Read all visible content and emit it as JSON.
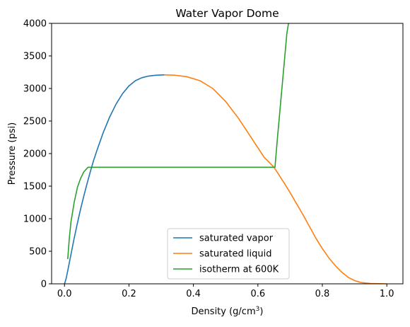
{
  "chart_data": {
    "type": "line",
    "title": "Water Vapor Dome",
    "xlabel": "Density (g/cm",
    "xlabel_superscript": "3",
    "xlabel_suffix": ")",
    "ylabel": "Pressure (psi)",
    "xlim": [
      -0.04,
      1.05
    ],
    "ylim": [
      0,
      4000
    ],
    "xticks": [
      0.0,
      0.2,
      0.4,
      0.6,
      0.8,
      1.0
    ],
    "xtick_labels": [
      "0.0",
      "0.2",
      "0.4",
      "0.6",
      "0.8",
      "1.0"
    ],
    "yticks": [
      0,
      500,
      1000,
      1500,
      2000,
      2500,
      3000,
      3500,
      4000
    ],
    "ytick_labels": [
      "0",
      "500",
      "1000",
      "1500",
      "2000",
      "2500",
      "3000",
      "3500",
      "4000"
    ],
    "grid": false,
    "legend_position": "lower-center",
    "series": [
      {
        "name": "saturated vapor",
        "color": "#1f77b4",
        "points": [
          [
            0.0,
            0
          ],
          [
            0.005,
            80
          ],
          [
            0.01,
            200
          ],
          [
            0.02,
            450
          ],
          [
            0.03,
            700
          ],
          [
            0.04,
            930
          ],
          [
            0.05,
            1150
          ],
          [
            0.06,
            1350
          ],
          [
            0.07,
            1540
          ],
          [
            0.08,
            1720
          ],
          [
            0.09,
            1890
          ],
          [
            0.1,
            2040
          ],
          [
            0.12,
            2320
          ],
          [
            0.14,
            2560
          ],
          [
            0.16,
            2760
          ],
          [
            0.18,
            2920
          ],
          [
            0.2,
            3040
          ],
          [
            0.22,
            3120
          ],
          [
            0.24,
            3165
          ],
          [
            0.26,
            3190
          ],
          [
            0.28,
            3202
          ],
          [
            0.3,
            3207
          ],
          [
            0.31,
            3208
          ]
        ]
      },
      {
        "name": "saturated liquid",
        "color": "#ff7f0e",
        "points": [
          [
            0.31,
            3208
          ],
          [
            0.34,
            3205
          ],
          [
            0.38,
            3180
          ],
          [
            0.42,
            3120
          ],
          [
            0.46,
            3000
          ],
          [
            0.5,
            2800
          ],
          [
            0.54,
            2540
          ],
          [
            0.58,
            2240
          ],
          [
            0.62,
            1940
          ],
          [
            0.65,
            1790
          ],
          [
            0.68,
            1560
          ],
          [
            0.7,
            1400
          ],
          [
            0.72,
            1230
          ],
          [
            0.74,
            1060
          ],
          [
            0.76,
            880
          ],
          [
            0.78,
            700
          ],
          [
            0.8,
            540
          ],
          [
            0.82,
            400
          ],
          [
            0.84,
            280
          ],
          [
            0.86,
            180
          ],
          [
            0.88,
            100
          ],
          [
            0.9,
            50
          ],
          [
            0.92,
            20
          ],
          [
            0.95,
            5
          ],
          [
            1.0,
            0
          ]
        ]
      },
      {
        "name": "isotherm at 600K",
        "color": "#2ca02c",
        "points": [
          [
            0.01,
            380
          ],
          [
            0.015,
            700
          ],
          [
            0.02,
            950
          ],
          [
            0.03,
            1250
          ],
          [
            0.04,
            1480
          ],
          [
            0.05,
            1620
          ],
          [
            0.06,
            1720
          ],
          [
            0.073,
            1790
          ],
          [
            0.653,
            1790
          ],
          [
            0.66,
            2200
          ],
          [
            0.67,
            2750
          ],
          [
            0.68,
            3300
          ],
          [
            0.69,
            3850
          ],
          [
            0.695,
            4000
          ]
        ]
      }
    ]
  }
}
